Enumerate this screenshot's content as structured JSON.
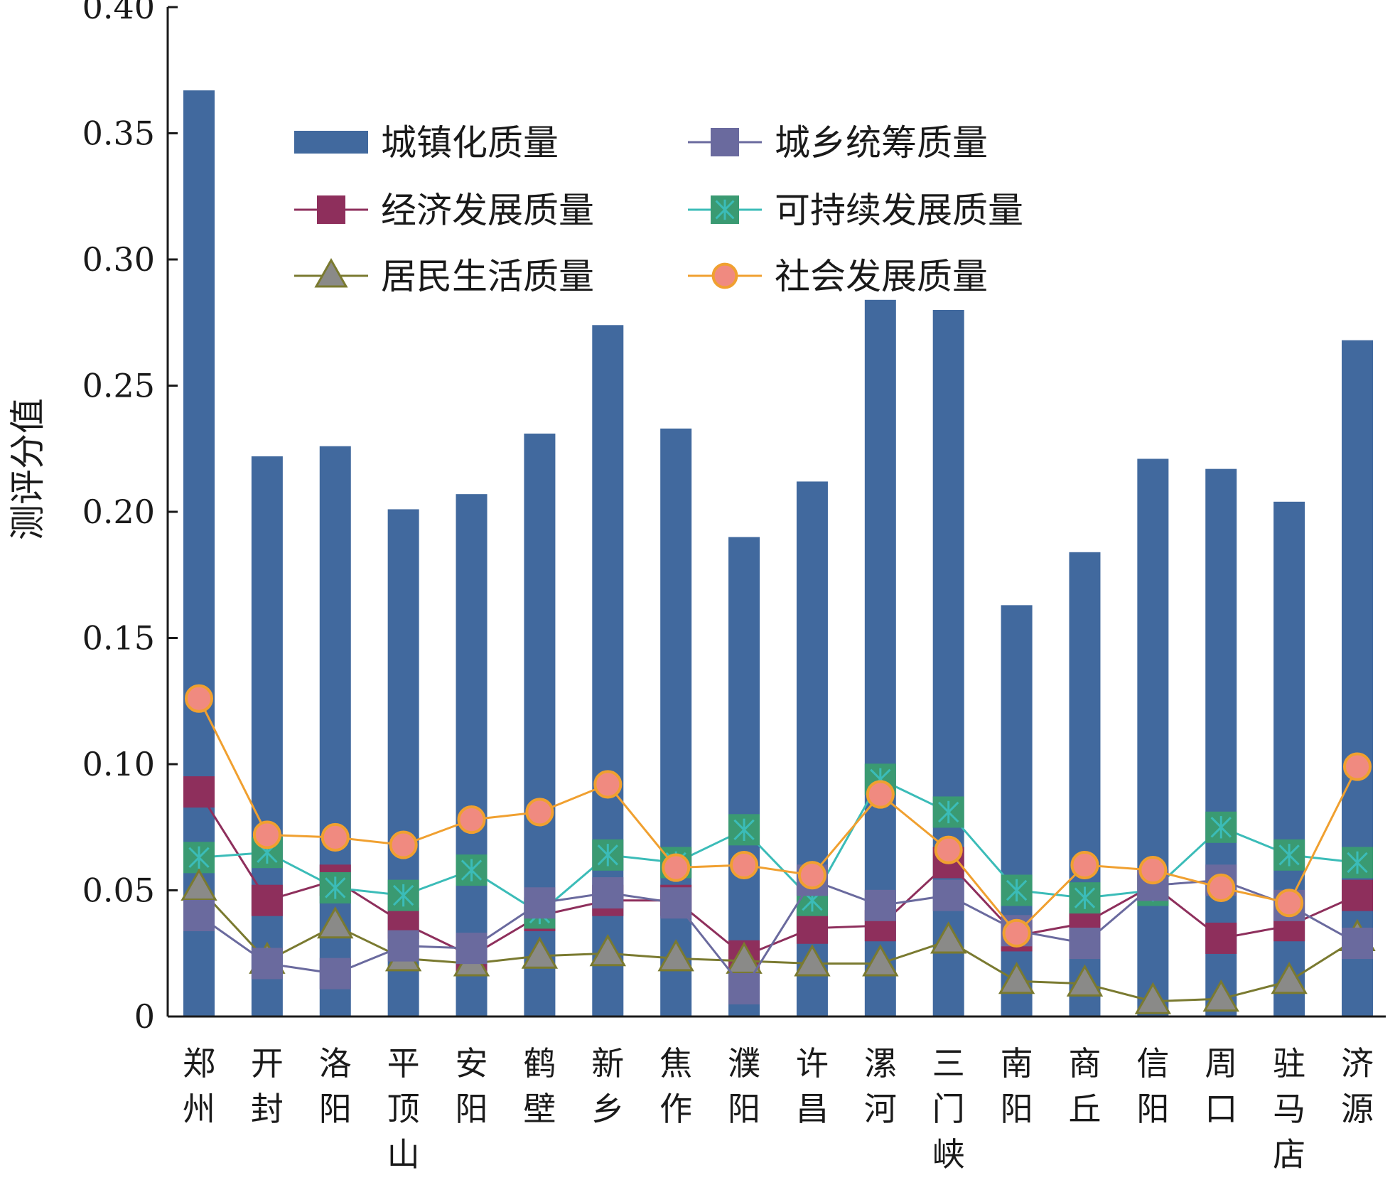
{
  "chart_data": {
    "type": "bar",
    "title": "",
    "xlabel": "",
    "ylabel": "测评分值",
    "ylim": [
      0,
      0.4
    ],
    "yticks": [
      "0",
      "0.05",
      "0.10",
      "0.15",
      "0.20",
      "0.25",
      "0.30",
      "0.35",
      "0.40"
    ],
    "grid": false,
    "legend_position": "top",
    "categories": [
      "郑州",
      "开封",
      "洛阳",
      "平顶山",
      "安阳",
      "鹤壁",
      "新乡",
      "焦作",
      "濮阳",
      "许昌",
      "漯河",
      "三门峡",
      "南阳",
      "商丘",
      "信阳",
      "周口",
      "驻马店",
      "济源"
    ],
    "series": [
      {
        "name": "城镇化质量",
        "kind": "bar",
        "marker": "none",
        "color": "#41699e",
        "values": [
          0.367,
          0.222,
          0.226,
          0.201,
          0.207,
          0.231,
          0.274,
          0.233,
          0.19,
          0.212,
          0.284,
          0.28,
          0.163,
          0.184,
          0.221,
          0.217,
          0.204,
          0.268
        ]
      },
      {
        "name": "城乡统筹质量",
        "kind": "line",
        "marker": "square",
        "color": "#6a6a9e",
        "markerColor": "#6a6a9e",
        "values": [
          0.04,
          0.021,
          0.017,
          0.028,
          0.027,
          0.045,
          0.049,
          0.045,
          0.011,
          0.054,
          0.044,
          0.048,
          0.034,
          0.029,
          0.052,
          0.054,
          0.044,
          0.029
        ]
      },
      {
        "name": "经济发展质量",
        "kind": "line",
        "marker": "square",
        "color": "#8e2f5c",
        "markerColor": "#8e2f5c",
        "values": [
          0.089,
          0.046,
          0.054,
          0.037,
          0.024,
          0.04,
          0.046,
          0.046,
          0.024,
          0.035,
          0.036,
          0.061,
          0.032,
          0.037,
          0.052,
          0.031,
          0.036,
          0.048
        ]
      },
      {
        "name": "可持续发展质量",
        "kind": "line",
        "marker": "xsquare",
        "color": "#3bbcb8",
        "markerColor": "#3a9a72",
        "values": [
          0.063,
          0.065,
          0.051,
          0.048,
          0.058,
          0.041,
          0.064,
          0.061,
          0.074,
          0.046,
          0.094,
          0.081,
          0.05,
          0.047,
          0.05,
          0.075,
          0.064,
          0.061
        ]
      },
      {
        "name": "居民生活质量",
        "kind": "line",
        "marker": "triangle",
        "color": "#7a7a30",
        "markerColor": "#8a8a88",
        "values": [
          0.051,
          0.022,
          0.036,
          0.023,
          0.021,
          0.024,
          0.025,
          0.023,
          0.022,
          0.021,
          0.021,
          0.03,
          0.014,
          0.013,
          0.006,
          0.007,
          0.014,
          0.031
        ]
      },
      {
        "name": "社会发展质量",
        "kind": "line",
        "marker": "circle",
        "color": "#f0a030",
        "markerColor": "#f08a80",
        "values": [
          0.126,
          0.072,
          0.071,
          0.068,
          0.078,
          0.081,
          0.092,
          0.059,
          0.06,
          0.056,
          0.088,
          0.066,
          0.033,
          0.06,
          0.058,
          0.051,
          0.045,
          0.099
        ]
      }
    ]
  }
}
